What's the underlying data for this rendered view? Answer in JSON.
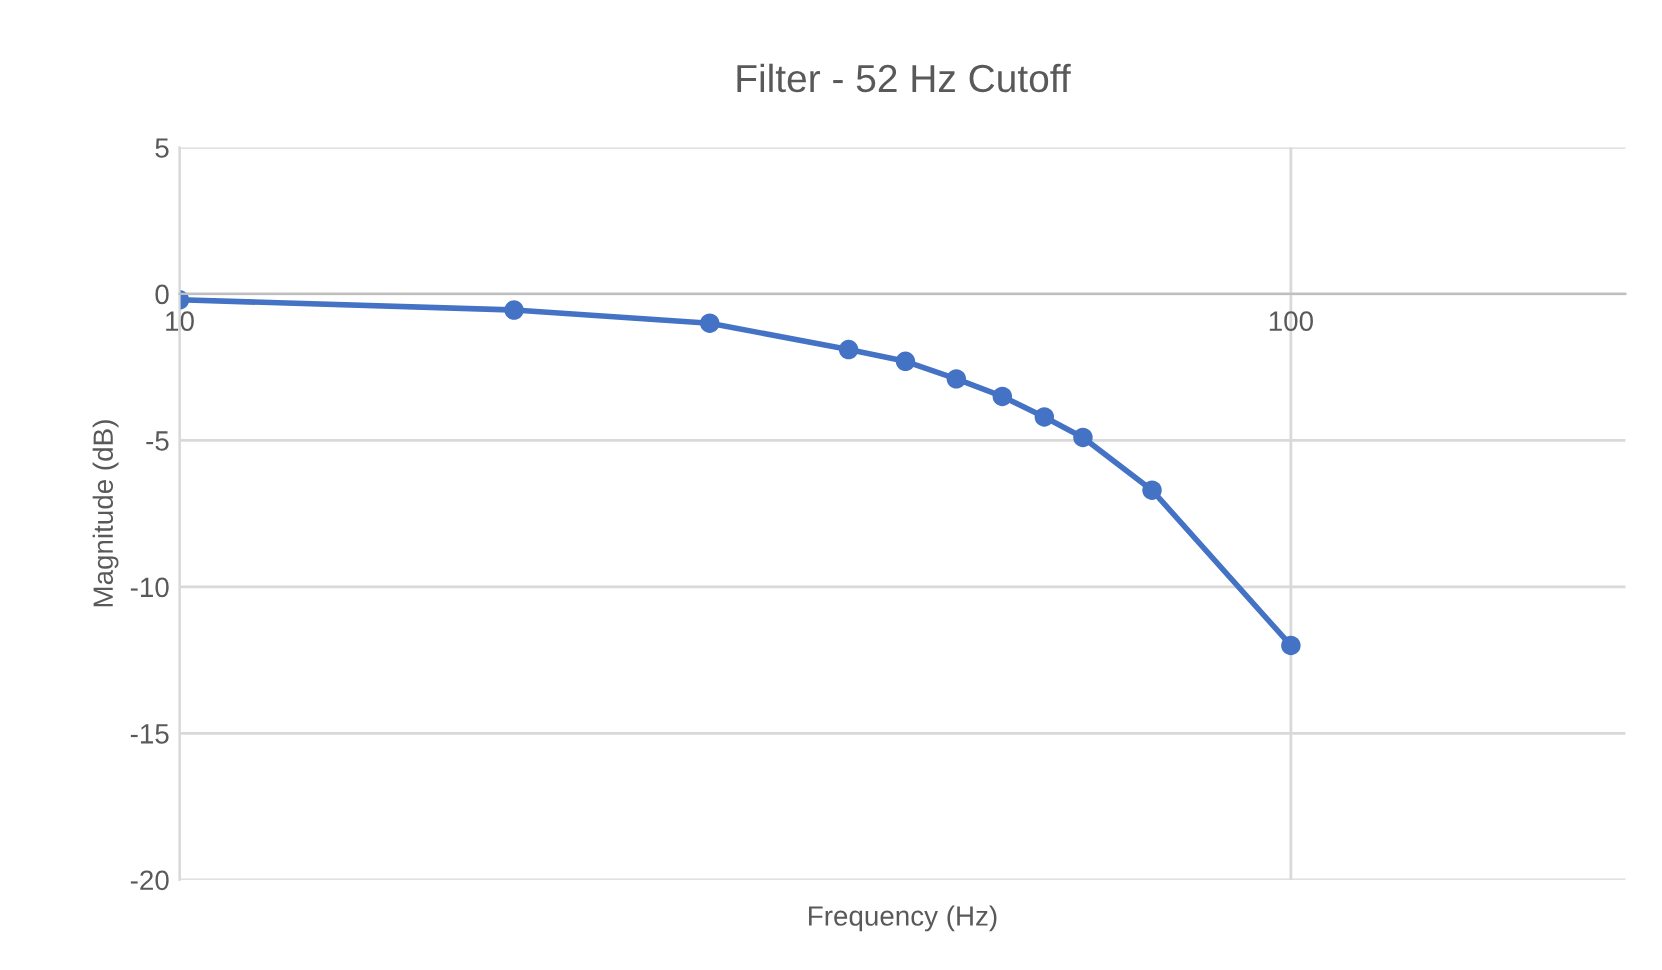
{
  "chart_data": {
    "type": "line",
    "title": "Filter - 52 Hz Cutoff",
    "xlabel": "Frequency (Hz)",
    "ylabel": "Magnitude (dB)",
    "x": [
      10,
      20,
      30,
      40,
      45,
      50,
      55,
      60,
      65,
      75,
      100
    ],
    "series": [
      {
        "color": "#4472c4",
        "values": [
          -0.2,
          -0.55,
          -1.0,
          -1.9,
          -2.3,
          -2.9,
          -3.5,
          -4.2,
          -4.9,
          -6.7,
          -12.0
        ]
      }
    ],
    "log": "x",
    "xlim": [
      10,
      200
    ],
    "xticks": [
      10,
      100
    ],
    "ylim": [
      -20,
      5
    ],
    "yticks": [
      -20,
      -15,
      -10,
      -5,
      0,
      5
    ],
    "grid": true,
    "marker": "circle",
    "line_style": "solid"
  }
}
